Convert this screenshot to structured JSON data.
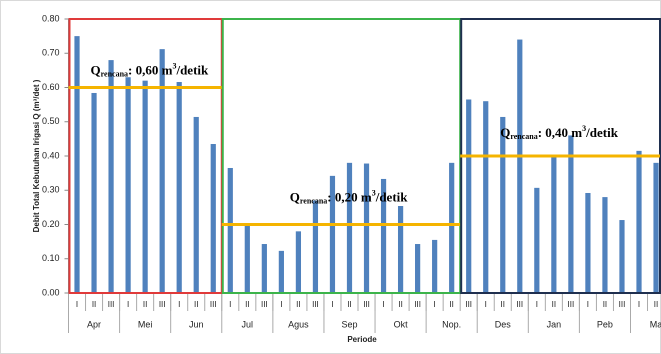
{
  "chart_data": {
    "type": "bar",
    "y_label": "Debit Total Kebutuhan Irigasi Q (m³/det )",
    "x_label": "Periode",
    "categories": [
      "I",
      "II",
      "III",
      "I",
      "II",
      "III",
      "I",
      "II",
      "III",
      "I",
      "II",
      "III",
      "I",
      "II",
      "III",
      "I",
      "II",
      "III",
      "I",
      "II",
      "III",
      "I",
      "II",
      "III",
      "I",
      "II",
      "III",
      "I",
      "II",
      "III",
      "I",
      "II",
      "III",
      "I",
      "II"
    ],
    "months": [
      "Apr",
      "Mei",
      "Jun",
      "Jul",
      "Agus",
      "Sep",
      "Okt",
      "Nop.",
      "Des",
      "Jan",
      "Peb",
      "Ma"
    ],
    "values": [
      0.75,
      0.584,
      0.68,
      0.63,
      0.62,
      0.712,
      0.616,
      0.514,
      0.435,
      0.365,
      0.2,
      0.143,
      0.123,
      0.18,
      0.27,
      0.342,
      0.38,
      0.378,
      0.333,
      0.254,
      0.143,
      0.155,
      0.38,
      0.565,
      0.56,
      0.514,
      0.74,
      0.307,
      0.397,
      0.46,
      0.292,
      0.28,
      0.213,
      0.415,
      0.38
    ],
    "color": "#4f81bd",
    "ylim": [
      0,
      0.8
    ],
    "yticks": [
      {
        "value": 0,
        "label": "0.00"
      },
      {
        "value": 0.1,
        "label": "0.10"
      },
      {
        "value": 0.2,
        "label": "0.20"
      },
      {
        "value": 0.3,
        "label": "0.30"
      },
      {
        "value": 0.4,
        "label": "0.40"
      },
      {
        "value": 0.5,
        "label": "0.50"
      },
      {
        "value": 0.6,
        "label": "0.60"
      },
      {
        "value": 0.7,
        "label": "0.70"
      },
      {
        "value": 0.8,
        "label": "0.80"
      }
    ],
    "targets": [
      {
        "value": 0.6,
        "span": [
          0,
          8
        ],
        "box_color": "#e03a3a",
        "line_color": "#f5b400",
        "label": {
          "symbol": "Q",
          "subscript": "rencana",
          "text": ": 0,60 m",
          "superscript": "3",
          "unit": "/detik"
        }
      },
      {
        "value": 0.2,
        "span": [
          9,
          22
        ],
        "box_color": "#3cb44b",
        "line_color": "#f5b400",
        "label": {
          "symbol": "Q",
          "subscript": "rencana",
          "text": ": 0,20 m",
          "superscript": "3",
          "unit": "/detik"
        }
      },
      {
        "value": 0.4,
        "span": [
          23,
          34
        ],
        "box_color": "#1f2f4f",
        "line_color": "#f5b400",
        "label": {
          "symbol": "Q",
          "subscript": "rencana",
          "text": ": 0,40 m",
          "superscript": "3",
          "unit": "/detik"
        }
      }
    ]
  }
}
